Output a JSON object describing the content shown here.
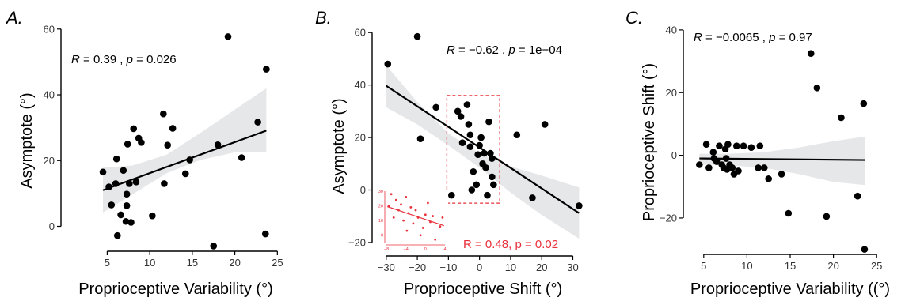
{
  "chart_data": [
    {
      "panel": "A.",
      "type": "scatter",
      "xlabel": "Proprioceptive Variability (°)",
      "ylabel": "Asymptote (°)",
      "xlim": [
        3,
        25
      ],
      "ylim": [
        -7,
        62
      ],
      "xticks": [
        5,
        10,
        15,
        20,
        25
      ],
      "yticks": [
        0,
        20,
        40,
        60
      ],
      "annotation": {
        "R_label": "R",
        "R_text": " = 0.39 , ",
        "p_label": "p",
        "p_text": " = 0.026"
      },
      "fit": {
        "x": [
          4.5,
          23.7
        ],
        "y": [
          11,
          29.1
        ]
      },
      "band_upper": [
        [
          4.5,
          17.8
        ],
        [
          8,
          18.5
        ],
        [
          12,
          21.8
        ],
        [
          16,
          28.5
        ],
        [
          20,
          35.5
        ],
        [
          23.7,
          42
        ]
      ],
      "band_lower": [
        [
          4.5,
          4.2
        ],
        [
          8,
          9.8
        ],
        [
          12,
          16.2
        ],
        [
          16,
          20.2
        ],
        [
          20,
          22.5
        ],
        [
          23.7,
          22.7
        ]
      ],
      "points": [
        [
          4.5,
          16.5
        ],
        [
          5.2,
          12
        ],
        [
          5.5,
          6.5
        ],
        [
          6,
          13
        ],
        [
          6.1,
          20.5
        ],
        [
          6.2,
          -2.8
        ],
        [
          6.6,
          3.5
        ],
        [
          6.9,
          17
        ],
        [
          7.2,
          1.5
        ],
        [
          7.3,
          6.3
        ],
        [
          7.3,
          9.8
        ],
        [
          7.4,
          25
        ],
        [
          7.6,
          13
        ],
        [
          7.8,
          1.2
        ],
        [
          8.1,
          29.7
        ],
        [
          8.4,
          13.5
        ],
        [
          8.7,
          26.8
        ],
        [
          9,
          25.5
        ],
        [
          10.3,
          3.2
        ],
        [
          11.6,
          34.2
        ],
        [
          11.7,
          13
        ],
        [
          12.1,
          24.7
        ],
        [
          12.7,
          29.8
        ],
        [
          14.2,
          16
        ],
        [
          14.7,
          20.2
        ],
        [
          17.5,
          -6
        ],
        [
          18,
          24.8
        ],
        [
          19.2,
          57.7
        ],
        [
          20.8,
          20.9
        ],
        [
          22.7,
          31.7
        ],
        [
          23.6,
          -2.3
        ],
        [
          23.7,
          47.8
        ]
      ]
    },
    {
      "panel": "B.",
      "type": "scatter",
      "xlabel": "Proprioceptive Shift (°)",
      "ylabel": "Asymptote (°)",
      "xlim": [
        -32,
        33
      ],
      "ylim": [
        -23,
        62
      ],
      "xticks": [
        -30,
        -20,
        -10,
        0,
        10,
        20,
        30
      ],
      "yticks": [
        -20,
        0,
        20,
        40,
        60
      ],
      "annotation": {
        "R_label": "R",
        "R_text": " = −0.62 , ",
        "p_label": "p",
        "p_text": " = 1e−04"
      },
      "inset_annotation": "R = 0.48, p = 0.02",
      "fit": {
        "x": [
          -30,
          32
        ],
        "y": [
          39.7,
          -8.8
        ]
      },
      "band_upper": [
        [
          -30,
          47.5
        ],
        [
          -20,
          33.5
        ],
        [
          -10,
          21.5
        ],
        [
          0,
          14
        ],
        [
          10,
          9
        ],
        [
          20,
          5.5
        ],
        [
          32,
          1
        ]
      ],
      "band_lower": [
        [
          -30,
          31.5
        ],
        [
          -20,
          25
        ],
        [
          -10,
          17
        ],
        [
          0,
          8.5
        ],
        [
          10,
          -1
        ],
        [
          20,
          -9.5
        ],
        [
          32,
          -18.5
        ]
      ],
      "points": [
        [
          -29.5,
          48
        ],
        [
          -20,
          58.5
        ],
        [
          -19,
          19.5
        ],
        [
          -14,
          31.5
        ],
        [
          -9,
          -2
        ],
        [
          -7,
          30
        ],
        [
          -6,
          28
        ],
        [
          -5.5,
          18
        ],
        [
          -4,
          32.5
        ],
        [
          -3.5,
          25
        ],
        [
          -3,
          21
        ],
        [
          -3,
          16.5
        ],
        [
          -2,
          7
        ],
        [
          -2.5,
          0
        ],
        [
          -1,
          2
        ],
        [
          -0.5,
          13.5
        ],
        [
          0,
          17
        ],
        [
          0.5,
          20
        ],
        [
          1,
          10
        ],
        [
          1.5,
          14
        ],
        [
          2,
          8.5
        ],
        [
          2.5,
          -2
        ],
        [
          3,
          26
        ],
        [
          3.5,
          14
        ],
        [
          4,
          12
        ],
        [
          4,
          5
        ],
        [
          4.5,
          2
        ],
        [
          12,
          21
        ],
        [
          17,
          -3
        ],
        [
          21,
          25
        ],
        [
          32,
          -6
        ]
      ],
      "dashed_box": {
        "x": [
          -10.5,
          6.5
        ],
        "y": [
          -5,
          36
        ]
      },
      "inset": {
        "xlim": [
          -8,
          4
        ],
        "ylim": [
          -5,
          30
        ],
        "xticks": [
          -8,
          -4,
          0,
          4
        ],
        "yticks": [
          0,
          10,
          20,
          30
        ],
        "fit": {
          "x": [
            -7.8,
            3.8
          ],
          "y": [
            19.5,
            6.5
          ]
        },
        "points": [
          [
            -7.5,
            20
          ],
          [
            -7,
            28
          ],
          [
            -6.5,
            12
          ],
          [
            -6,
            24
          ],
          [
            -5.5,
            17
          ],
          [
            -5,
            21
          ],
          [
            -4.5,
            10
          ],
          [
            -4,
            26
          ],
          [
            -3.8,
            3
          ],
          [
            -3.5,
            15
          ],
          [
            -3,
            19
          ],
          [
            -2.5,
            8
          ],
          [
            -2,
            17
          ],
          [
            -1.5,
            12
          ],
          [
            -1,
            0
          ],
          [
            -0.5,
            5
          ],
          [
            0,
            14
          ],
          [
            0.5,
            22
          ],
          [
            1,
            9
          ],
          [
            1.5,
            13
          ],
          [
            2,
            -3
          ],
          [
            3,
            6
          ],
          [
            3.5,
            12
          ]
        ]
      }
    },
    {
      "panel": "C.",
      "type": "scatter",
      "xlabel": "Proprioceptive Variability ((°)",
      "ylabel": "Proprioceptive Shift (°)",
      "xlim": [
        3,
        25
      ],
      "ylim": [
        -33,
        41
      ],
      "xticks": [
        5,
        10,
        15,
        20,
        25
      ],
      "yticks": [
        -20,
        0,
        20,
        40
      ],
      "annotation": {
        "R_label": "R",
        "R_text": " = −0.0065 , ",
        "p_label": "p",
        "p_text": " = 0.97"
      },
      "fit": {
        "x": [
          4.5,
          23.7
        ],
        "y": [
          -1,
          -1.5
        ]
      },
      "band_upper": [
        [
          4.5,
          0.5
        ],
        [
          8,
          0.5
        ],
        [
          12,
          1
        ],
        [
          16,
          2.5
        ],
        [
          20,
          4.5
        ],
        [
          23.7,
          6
        ]
      ],
      "band_lower": [
        [
          4.5,
          -3
        ],
        [
          8,
          -3.2
        ],
        [
          12,
          -4
        ],
        [
          16,
          -6
        ],
        [
          20,
          -8.5
        ],
        [
          23.7,
          -9.5
        ]
      ],
      "points": [
        [
          4.5,
          -3
        ],
        [
          5.3,
          3.5
        ],
        [
          5.6,
          -4
        ],
        [
          6.1,
          1
        ],
        [
          6.2,
          -1
        ],
        [
          6.5,
          -2
        ],
        [
          6.8,
          3
        ],
        [
          7.1,
          -3
        ],
        [
          7.3,
          -4
        ],
        [
          7.5,
          2
        ],
        [
          7.6,
          -1
        ],
        [
          7.7,
          -4.5
        ],
        [
          7.8,
          3.5
        ],
        [
          8,
          -3
        ],
        [
          8.3,
          -4
        ],
        [
          8.5,
          -6
        ],
        [
          8.8,
          3
        ],
        [
          9,
          -5
        ],
        [
          9.6,
          3
        ],
        [
          10.5,
          2.5
        ],
        [
          11.3,
          -4
        ],
        [
          11.5,
          3
        ],
        [
          12,
          -4
        ],
        [
          12.5,
          -7.5
        ],
        [
          14,
          -6
        ],
        [
          14.8,
          -18.5
        ],
        [
          17.4,
          32.5
        ],
        [
          18.1,
          21.5
        ],
        [
          19.2,
          -19.5
        ],
        [
          20.9,
          12
        ],
        [
          22.8,
          -13
        ],
        [
          23.5,
          16.5
        ],
        [
          23.6,
          -30
        ]
      ]
    }
  ]
}
